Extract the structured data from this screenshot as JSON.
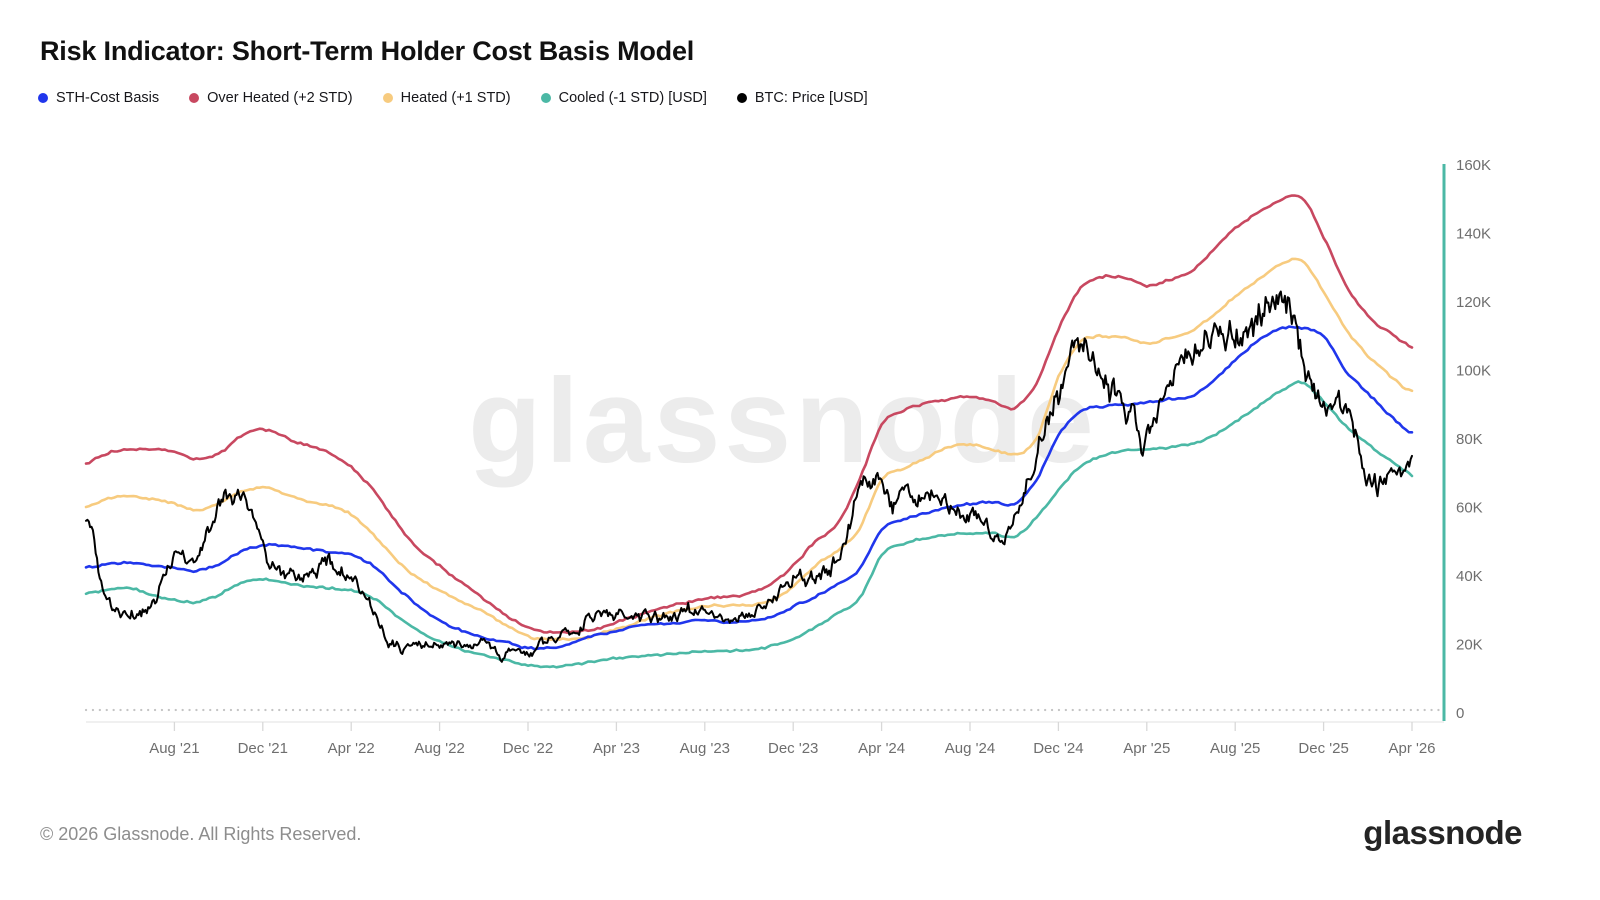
{
  "title": "Risk Indicator: Short-Term Holder Cost Basis Model",
  "legend": [
    {
      "label": "STH-Cost Basis",
      "color": "#2036EC"
    },
    {
      "label": "Over Heated (+2 STD)",
      "color": "#C84860"
    },
    {
      "label": "Heated (+1 STD)",
      "color": "#F7CB7F"
    },
    {
      "label": "Cooled (-1 STD) [USD]",
      "color": "#4BB8A5"
    },
    {
      "label": "BTC: Price [USD]",
      "color": "#000000"
    }
  ],
  "watermark": {
    "text": "glassnode",
    "color": "#ececec"
  },
  "footer": {
    "copyright": "© 2026 Glassnode. All Rights Reserved.",
    "logo": "glassnode"
  },
  "chart_data": {
    "type": "line",
    "title": "Risk Indicator: Short-Term Holder Cost Basis Model",
    "unit": "USD",
    "x_domain": [
      "Apr 2021",
      "Apr 2026"
    ],
    "x_interval": "monthly",
    "x_ticks": [
      "Aug '21",
      "Dec '21",
      "Apr '22",
      "Aug '22",
      "Dec '22",
      "Apr '23",
      "Aug '23",
      "Dec '23",
      "Apr '24",
      "Aug '24",
      "Dec '24",
      "Apr '25",
      "Aug '25",
      "Dec '25",
      "Apr '26"
    ],
    "y_ticks": [
      "0",
      "20K",
      "40K",
      "60K",
      "80K",
      "100K",
      "120K",
      "140K",
      "160K"
    ],
    "ylim": [
      0,
      160000
    ],
    "grid": false,
    "legend_position": "top-left",
    "axis_color": "#4BB8A5",
    "tick_text_color": "#6e6e6e",
    "values_unit": "thousand USD, monthly Apr 2021 → Apr 2026",
    "series": [
      {
        "name": "Over Heated (+2 STD)",
        "color": "#C84860",
        "width": 2.6,
        "noise": 0.45,
        "seed": 3,
        "values": [
          73,
          76,
          77,
          77,
          76,
          74,
          75.5,
          81,
          83,
          80.5,
          78,
          76,
          72,
          65,
          56,
          48,
          43,
          38,
          33.5,
          28.5,
          25,
          23.5,
          23.5,
          24.5,
          26.5,
          28.5,
          30.5,
          32,
          33.5,
          34,
          35,
          38,
          43,
          50,
          55,
          68,
          84,
          88.5,
          90.5,
          91.5,
          92.5,
          91,
          89,
          96,
          112,
          124,
          127.5,
          127,
          125,
          126.5,
          129,
          135,
          141.5,
          146,
          149.5,
          150.5,
          139,
          125,
          116,
          111,
          107
        ]
      },
      {
        "name": "Heated (+1 STD)",
        "color": "#F7CB7F",
        "width": 2.6,
        "noise": 0.45,
        "seed": 5,
        "values": [
          60,
          62.5,
          63.5,
          62.5,
          61,
          59,
          61,
          64.5,
          66,
          64,
          62,
          60.5,
          58,
          52,
          45,
          39.5,
          36,
          32.5,
          29.5,
          25.5,
          22.5,
          21.5,
          21.5,
          22.5,
          24.5,
          26.5,
          28.5,
          30,
          31,
          31.5,
          31.5,
          33,
          37,
          43,
          47.5,
          54,
          68,
          71.5,
          74.5,
          77.5,
          78.5,
          77,
          75.5,
          80,
          98,
          108.5,
          110,
          109.5,
          108,
          109.5,
          111.5,
          116,
          121.5,
          126.5,
          130.5,
          132,
          123,
          112,
          104.5,
          98.5,
          94
        ]
      },
      {
        "name": "Cooled (-1 STD) [USD]",
        "color": "#4BB8A5",
        "width": 2.6,
        "noise": 0.4,
        "seed": 7,
        "values": [
          35,
          36,
          36.5,
          34.5,
          33,
          32.5,
          34.5,
          38,
          39,
          38,
          37,
          36.5,
          36,
          33.5,
          28.5,
          24,
          21,
          18.5,
          17,
          15.5,
          14,
          13.5,
          14,
          15,
          16,
          16.5,
          17,
          17.5,
          18,
          18,
          18.5,
          19.5,
          21.5,
          25,
          29,
          33.5,
          46,
          49.5,
          51,
          52,
          52.5,
          52.5,
          51.5,
          57,
          65,
          72,
          75,
          76.5,
          77,
          77.5,
          78.5,
          81,
          85,
          89.5,
          93.5,
          96.5,
          91,
          84,
          78.5,
          74,
          69.5
        ]
      },
      {
        "name": "STH-Cost Basis",
        "color": "#2036EC",
        "width": 2.6,
        "noise": 0.4,
        "seed": 9,
        "values": [
          42.5,
          43.5,
          44,
          43,
          42.5,
          41.5,
          43.5,
          47,
          49,
          49,
          48,
          47,
          46.5,
          43,
          37,
          31.5,
          27,
          24,
          22,
          20.5,
          19,
          19,
          20.5,
          22.5,
          24,
          25.5,
          26,
          26.5,
          27,
          26.5,
          27,
          28,
          31,
          34,
          37.5,
          42,
          53.5,
          56.5,
          58.5,
          60,
          61,
          61.5,
          61,
          68,
          81,
          88,
          89.5,
          90,
          90.5,
          91.5,
          92.5,
          97,
          103,
          108.5,
          112,
          112.5,
          110,
          100,
          93.5,
          87,
          81.5
        ]
      },
      {
        "name": "BTC: Price [USD]",
        "color": "#000000",
        "width": 2.0,
        "noise": 2.6,
        "seed": 11,
        "style": "volatile",
        "values": [
          56,
          33,
          29,
          31,
          46,
          44.5,
          58,
          64,
          48,
          41,
          42,
          45,
          41.5,
          31,
          21,
          21.5,
          22,
          19.5,
          19.5,
          16.5,
          16.8,
          20.8,
          23.5,
          27,
          29,
          27.2,
          27.5,
          30,
          28,
          26.3,
          30,
          33,
          40,
          41,
          46,
          64,
          65,
          62,
          64,
          58,
          58,
          53,
          57,
          75,
          97,
          102,
          97,
          88,
          80,
          94,
          107,
          112,
          110,
          115,
          123,
          107,
          89,
          87,
          68,
          66,
          75
        ]
      }
    ]
  }
}
